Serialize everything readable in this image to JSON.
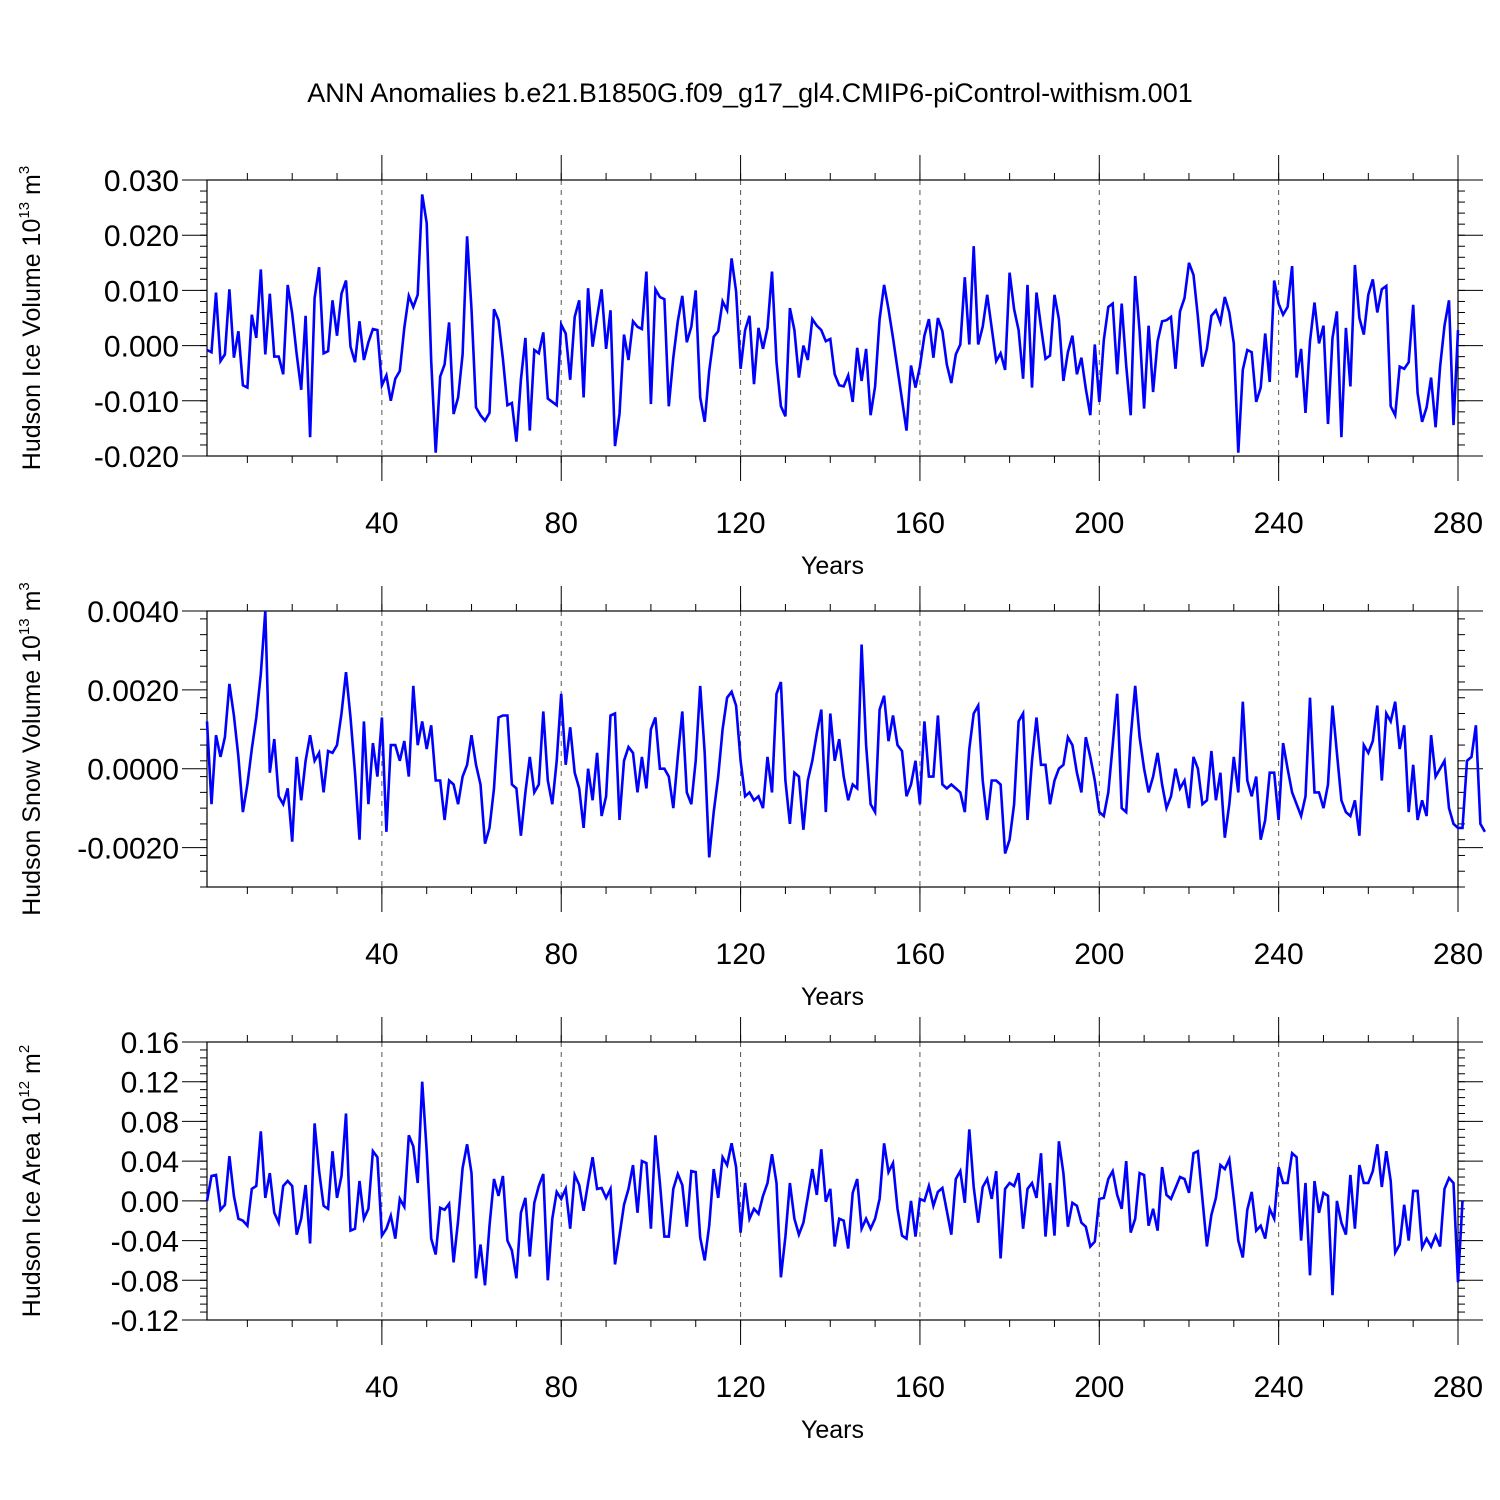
{
  "title": "ANN Anomalies b.e21.B1850G.f09_g17_gl4.CMIP6-piControl-withism.001",
  "chart_data": [
    {
      "type": "line",
      "id": "ice-volume",
      "ylabel": {
        "text": "Hudson Ice Volume 10",
        "sup": "13",
        "unit": " m",
        "unit_sup": "3"
      },
      "xlabel": "Years",
      "xlim": [
        1,
        280
      ],
      "ylim": [
        -0.02,
        0.03
      ],
      "xticks": [
        40,
        80,
        120,
        160,
        200,
        240,
        280
      ],
      "xtick_labels": [
        "40",
        "80",
        "120",
        "160",
        "200",
        "240",
        "280"
      ],
      "yticks": [
        -0.02,
        -0.01,
        0.0,
        0.01,
        0.02,
        0.03
      ],
      "ytick_labels": [
        "-0.020",
        "-0.010",
        "0.000",
        "0.010",
        "0.020",
        "0.030"
      ],
      "line_color": "#0000ff",
      "series": [
        {
          "name": "Hudson Ice Volume",
          "values": [
            -0.0008,
            -0.0012,
            0.0096,
            -0.0028,
            -0.0016,
            0.0102,
            -0.0022,
            0.0026,
            -0.0072,
            -0.0076,
            0.0056,
            0.0014,
            0.0138,
            -0.0016,
            0.0094,
            -0.002,
            -0.002,
            -0.0052,
            0.011,
            0.0058,
            -0.0016,
            -0.008,
            0.0054,
            -0.0166,
            0.0086,
            0.0142,
            -0.0014,
            -0.001,
            0.0082,
            0.0018,
            0.0094,
            0.0118,
            -0.0002,
            -0.003,
            0.0044,
            -0.0026,
            0.0006,
            0.003,
            0.0028,
            -0.0072,
            -0.0054,
            -0.01,
            -0.006,
            -0.0046,
            0.0032,
            0.009,
            0.007,
            0.0092,
            0.0274,
            0.0222,
            -0.0028,
            -0.0194,
            -0.0056,
            -0.0034,
            0.0042,
            -0.0124,
            -0.0094,
            -0.0016,
            0.0198,
            0.0066,
            -0.0112,
            -0.0126,
            -0.0136,
            -0.0122,
            0.0066,
            0.0046,
            -0.0024,
            -0.0108,
            -0.0104,
            -0.0174,
            -0.0062,
            0.0014,
            -0.0154,
            -0.0008,
            -0.0014,
            0.0024,
            -0.0096,
            -0.0102,
            -0.0108,
            0.0038,
            0.0022,
            -0.0062,
            0.0052,
            0.0082,
            -0.0094,
            0.0104,
            -0.0002,
            0.0052,
            0.0102,
            -0.0006,
            0.0064,
            -0.0182,
            -0.0124,
            0.002,
            -0.0026,
            0.0044,
            0.0034,
            0.003,
            0.0134,
            -0.0106,
            0.0102,
            0.0088,
            0.0084,
            -0.011,
            -0.0022,
            0.0044,
            0.009,
            0.0006,
            0.0034,
            0.01,
            -0.0094,
            -0.0138,
            -0.0046,
            0.0016,
            0.0026,
            0.008,
            0.0064,
            0.0158,
            0.0098,
            -0.0042,
            0.0028,
            0.0054,
            -0.007,
            0.0032,
            -0.0006,
            0.0032,
            0.0134,
            -0.003,
            -0.011,
            -0.0128,
            0.0068,
            0.0028,
            -0.0058,
            0.0,
            -0.0026,
            0.0048,
            0.0036,
            0.0028,
            0.0008,
            0.0012,
            -0.0052,
            -0.0072,
            -0.0074,
            -0.0054,
            -0.0102,
            -0.0004,
            -0.0064,
            -0.0006,
            -0.0126,
            -0.0074,
            0.0048,
            0.011,
            0.0066,
            0.0014,
            -0.0042,
            -0.0098,
            -0.0154,
            -0.0036,
            -0.0076,
            -0.0038,
            0.0018,
            0.0048,
            -0.0022,
            0.005,
            0.0026,
            -0.0034,
            -0.0068,
            -0.0016,
            0.0002,
            0.0124,
            0.0002,
            0.018,
            0.0002,
            0.0034,
            0.0092,
            0.0032,
            -0.0028,
            -0.0014,
            -0.0044,
            0.0132,
            0.0066,
            0.0028,
            -0.006,
            0.011,
            -0.0076,
            0.0096,
            0.0034,
            -0.0024,
            -0.0018,
            0.0092,
            0.0048,
            -0.0064,
            -0.0012,
            0.0018,
            -0.0052,
            -0.0022,
            -0.0078,
            -0.0126,
            0.0002,
            -0.0102,
            0.001,
            0.007,
            0.0076,
            -0.0052,
            0.0076,
            -0.0036,
            -0.0126,
            0.0126,
            0.0026,
            -0.0114,
            0.0036,
            -0.0084,
            0.0008,
            0.0044,
            0.0046,
            0.0052,
            -0.0042,
            0.0062,
            0.0086,
            0.015,
            0.0128,
            0.0052,
            -0.0038,
            -0.0006,
            0.0054,
            0.0064,
            0.0042,
            0.0088,
            0.006,
            0.0004,
            -0.0194,
            -0.0044,
            -0.0008,
            -0.0012,
            -0.0102,
            -0.0076,
            0.0022,
            -0.0066,
            0.0118,
            0.0076,
            0.0056,
            0.007,
            0.0144,
            -0.0058,
            -0.0006,
            -0.0122,
            0.0008,
            0.0078,
            0.0004,
            0.0036,
            -0.0142,
            0.0014,
            0.0062,
            -0.0166,
            0.0032,
            -0.0074,
            0.0146,
            0.005,
            0.002,
            0.0092,
            0.012,
            0.006,
            0.0102,
            0.0108,
            -0.011,
            -0.0126,
            -0.0038,
            -0.0042,
            -0.003,
            0.0074,
            -0.0086,
            -0.0138,
            -0.0112,
            -0.0058,
            -0.0148,
            -0.0038,
            0.0036,
            0.0082,
            -0.0144,
            0.0028
          ]
        }
      ]
    },
    {
      "type": "line",
      "id": "snow-volume",
      "ylabel": {
        "text": "Hudson Snow Volume 10",
        "sup": "13",
        "unit": " m",
        "unit_sup": "3"
      },
      "xlabel": "Years",
      "xlim": [
        1,
        280
      ],
      "ylim": [
        -0.003,
        0.004
      ],
      "xticks": [
        40,
        80,
        120,
        160,
        200,
        240,
        280
      ],
      "xtick_labels": [
        "40",
        "80",
        "120",
        "160",
        "200",
        "240",
        "280"
      ],
      "yticks": [
        -0.002,
        0.0,
        0.002,
        0.004
      ],
      "ytick_labels": [
        "-0.0020",
        "0.0000",
        "0.0020",
        "0.0040"
      ],
      "line_color": "#0000ff",
      "series": [
        {
          "name": "Hudson Snow Volume",
          "values": [
            0.0012,
            -0.0009,
            0.00085,
            0.0003,
            0.0008,
            0.00215,
            0.00135,
            0.0003,
            -0.0011,
            -0.0004,
            0.0005,
            0.0013,
            0.0024,
            0.004,
            -0.0001,
            0.00075,
            -0.0007,
            -0.0009,
            -0.0005,
            -0.00185,
            0.0003,
            -0.0008,
            0.0002,
            0.00085,
            0.0002,
            0.0004,
            -0.0006,
            0.00045,
            0.0004,
            0.0006,
            0.0014,
            0.00245,
            0.0013,
            -0.0001,
            -0.0018,
            0.0012,
            -0.0009,
            0.00065,
            -0.0002,
            0.0013,
            -0.0016,
            0.0006,
            0.0006,
            0.0002,
            0.0007,
            -0.0002,
            0.0021,
            0.0006,
            0.0012,
            0.0005,
            0.0011,
            -0.0003,
            -0.0003,
            -0.0013,
            -0.0003,
            -0.0004,
            -0.0009,
            -0.0002,
            0.0001,
            0.00085,
            0.0001,
            -0.0004,
            -0.0019,
            -0.0015,
            -0.0005,
            0.0013,
            0.00135,
            0.00135,
            -0.0004,
            -0.0005,
            -0.0017,
            -0.0006,
            0.0003,
            -0.0006,
            -0.0004,
            0.00145,
            -0.0003,
            -0.0009,
            0.0002,
            0.0019,
            0.0001,
            0.00105,
            -0.0001,
            -0.0005,
            -0.0015,
            0.0,
            -0.0008,
            0.0004,
            -0.0012,
            -0.0007,
            0.00135,
            0.0014,
            -0.0013,
            0.0002,
            0.00055,
            0.0004,
            -0.0006,
            0.0003,
            -0.0005,
            0.001,
            0.0013,
            0.0,
            0.0,
            -0.0002,
            -0.001,
            0.0003,
            0.00145,
            -0.0006,
            -0.0009,
            0.0002,
            0.0021,
            0.0004,
            -0.00225,
            -0.0011,
            -0.0002,
            0.001,
            0.0018,
            0.00195,
            0.0016,
            0.0002,
            -0.0007,
            -0.0006,
            -0.0008,
            -0.0007,
            -0.001,
            0.0003,
            -0.0006,
            0.0019,
            0.0022,
            -0.0003,
            -0.0014,
            -0.0001,
            -0.0002,
            -0.00155,
            -0.0003,
            0.0002,
            0.0009,
            0.0015,
            -0.0011,
            0.0014,
            0.0002,
            0.00075,
            -0.0002,
            -0.0008,
            -0.0004,
            -0.0005,
            0.00315,
            0.0006,
            -0.0009,
            -0.0011,
            0.0015,
            0.00185,
            0.0007,
            0.00135,
            0.0006,
            0.00045,
            -0.0007,
            -0.0004,
            0.0002,
            -0.0009,
            0.0012,
            -0.0002,
            -0.0002,
            0.00135,
            -0.0004,
            -0.0005,
            -0.0004,
            -0.0005,
            -0.0006,
            -0.0011,
            0.0005,
            0.0014,
            0.0016,
            -0.0003,
            -0.0013,
            -0.0003,
            -0.0003,
            -0.0004,
            -0.00215,
            -0.0018,
            -0.0009,
            0.0012,
            0.0014,
            -0.0013,
            0.0002,
            0.0013,
            0.0001,
            0.0001,
            -0.0009,
            -0.0003,
            0.0,
            0.0001,
            0.0008,
            0.0006,
            -0.0001,
            -0.0006,
            0.0008,
            0.0003,
            -0.0003,
            -0.0011,
            -0.0012,
            -0.0006,
            0.0006,
            0.0019,
            -0.001,
            -0.0011,
            0.0008,
            0.0021,
            0.0008,
            0.0,
            -0.0006,
            -0.0002,
            0.0004,
            -0.0004,
            -0.001,
            -0.0007,
            0.0,
            -0.0005,
            -0.0003,
            -0.001,
            0.0003,
            0.0,
            -0.0009,
            -0.0008,
            0.00045,
            -0.0008,
            -0.0001,
            -0.00175,
            -0.0009,
            0.0003,
            -0.0006,
            0.0017,
            -0.0003,
            -0.0007,
            -0.0002,
            -0.0018,
            -0.0013,
            -0.0001,
            -0.0001,
            -0.0013,
            0.00065,
            0.0,
            -0.0006,
            -0.0009,
            -0.0012,
            -0.0007,
            0.0018,
            -0.0006,
            -0.0006,
            -0.001,
            -0.0004,
            0.0016,
            0.0004,
            -0.0008,
            -0.0011,
            -0.0012,
            -0.0008,
            -0.0017,
            0.0006,
            0.0004,
            0.0007,
            0.0016,
            -0.0003,
            0.0014,
            0.0012,
            0.0017,
            0.0005,
            0.0011,
            -0.0011,
            0.0001,
            -0.0013,
            -0.0008,
            -0.0012,
            0.00085,
            -0.0002,
            0.0,
            0.0002,
            -0.001,
            -0.0014,
            -0.0015,
            -0.0015,
            0.0002,
            0.0003,
            0.0011,
            -0.0014,
            -0.0016
          ]
        }
      ]
    },
    {
      "type": "line",
      "id": "ice-area",
      "ylabel": {
        "text": "Hudson Ice Area 10",
        "sup": "12",
        "unit": " m",
        "unit_sup": "2"
      },
      "xlabel": "Years",
      "xlim": [
        1,
        280
      ],
      "ylim": [
        -0.12,
        0.16
      ],
      "xticks": [
        40,
        80,
        120,
        160,
        200,
        240,
        280
      ],
      "xtick_labels": [
        "40",
        "80",
        "120",
        "160",
        "200",
        "240",
        "280"
      ],
      "yticks": [
        -0.12,
        -0.08,
        -0.04,
        0.0,
        0.04,
        0.08,
        0.12,
        0.16
      ],
      "ytick_labels": [
        "-0.12",
        "-0.08",
        "-0.04",
        "0.00",
        "0.04",
        "0.08",
        "0.12",
        "0.16"
      ],
      "line_color": "#0000ff",
      "series": [
        {
          "name": "Hudson Ice Area",
          "values": [
            0.0,
            0.025,
            0.026,
            -0.009,
            -0.004,
            0.045,
            0.005,
            -0.018,
            -0.02,
            -0.025,
            0.012,
            0.015,
            0.07,
            0.003,
            0.028,
            -0.012,
            -0.022,
            0.015,
            0.02,
            0.015,
            -0.034,
            -0.018,
            0.016,
            -0.043,
            0.078,
            0.03,
            -0.005,
            -0.008,
            0.05,
            0.003,
            0.025,
            0.088,
            -0.03,
            -0.028,
            0.02,
            -0.018,
            -0.008,
            0.05,
            0.044,
            -0.035,
            -0.028,
            -0.015,
            -0.038,
            0.002,
            -0.006,
            0.066,
            0.055,
            0.018,
            0.12,
            0.05,
            -0.038,
            -0.054,
            -0.007,
            -0.009,
            -0.003,
            -0.062,
            -0.02,
            0.033,
            0.057,
            0.028,
            -0.078,
            -0.044,
            -0.085,
            -0.025,
            0.022,
            0.005,
            0.025,
            -0.04,
            -0.05,
            -0.078,
            -0.012,
            0.003,
            -0.056,
            -0.002,
            0.015,
            0.027,
            -0.08,
            -0.018,
            0.009,
            0.002,
            0.012,
            -0.028,
            0.026,
            0.016,
            -0.01,
            0.018,
            0.044,
            0.012,
            0.013,
            0.003,
            0.012,
            -0.064,
            -0.035,
            -0.004,
            0.012,
            0.036,
            -0.012,
            0.04,
            0.038,
            -0.028,
            0.066,
            0.018,
            -0.036,
            -0.036,
            0.012,
            0.027,
            0.016,
            -0.026,
            0.03,
            0.029,
            -0.037,
            -0.06,
            -0.025,
            0.032,
            0.003,
            0.044,
            0.036,
            0.058,
            0.034,
            -0.032,
            0.018,
            -0.018,
            -0.008,
            -0.013,
            0.005,
            0.018,
            0.047,
            0.018,
            -0.077,
            -0.036,
            0.018,
            -0.018,
            -0.034,
            -0.022,
            0.004,
            0.032,
            0.006,
            0.052,
            -0.001,
            0.012,
            -0.046,
            -0.018,
            -0.02,
            -0.048,
            0.008,
            0.022,
            -0.028,
            -0.018,
            -0.028,
            -0.018,
            0.002,
            0.058,
            0.029,
            0.038,
            -0.008,
            -0.035,
            -0.038,
            0.0,
            -0.036,
            0.002,
            0.0,
            0.015,
            -0.005,
            0.009,
            0.013,
            -0.01,
            -0.034,
            0.022,
            0.03,
            -0.002,
            0.072,
            0.014,
            -0.022,
            0.014,
            0.022,
            0.002,
            0.03,
            -0.058,
            0.012,
            0.018,
            0.015,
            0.028,
            -0.028,
            0.012,
            0.018,
            0.003,
            0.048,
            -0.036,
            0.018,
            -0.035,
            0.06,
            0.028,
            -0.026,
            -0.002,
            -0.005,
            -0.022,
            -0.026,
            -0.046,
            -0.041,
            0.002,
            0.003,
            0.022,
            0.03,
            0.006,
            -0.008,
            0.04,
            -0.032,
            -0.018,
            0.028,
            0.026,
            -0.025,
            -0.008,
            -0.03,
            0.034,
            0.006,
            0.002,
            0.013,
            0.024,
            0.022,
            0.008,
            0.048,
            0.05,
            0.002,
            -0.046,
            -0.014,
            0.003,
            0.036,
            0.032,
            0.042,
            0.002,
            -0.04,
            -0.057,
            -0.009,
            0.009,
            -0.03,
            -0.025,
            -0.038,
            -0.008,
            -0.018,
            0.034,
            0.018,
            0.018,
            0.048,
            0.044,
            -0.04,
            0.018,
            -0.075,
            0.02,
            -0.012,
            0.008,
            0.005,
            -0.095,
            0.0,
            -0.022,
            -0.034,
            0.026,
            -0.028,
            0.036,
            0.018,
            0.018,
            0.03,
            0.057,
            0.014,
            0.05,
            0.02,
            -0.052,
            -0.044,
            -0.004,
            -0.04,
            0.01,
            0.01,
            -0.047,
            -0.038,
            -0.046,
            -0.035,
            -0.046,
            0.012,
            0.023,
            0.018,
            -0.082,
            0.0
          ]
        }
      ]
    }
  ]
}
